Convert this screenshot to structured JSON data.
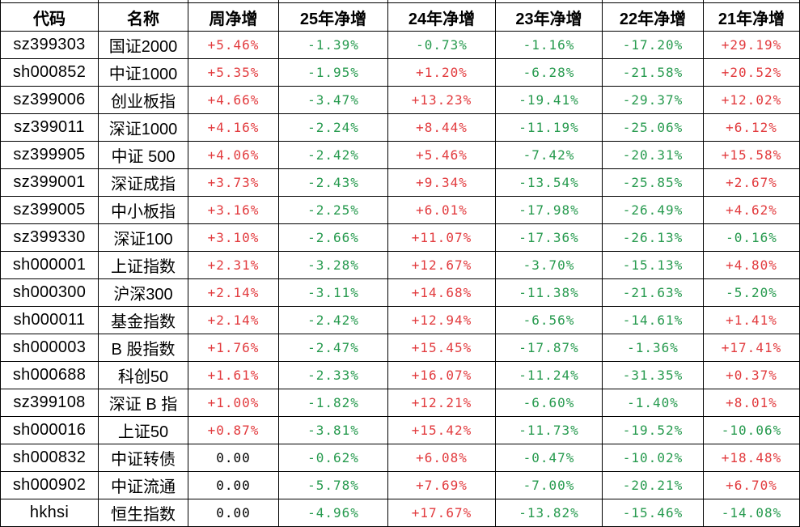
{
  "table": {
    "columns": [
      "代码",
      "名称",
      "周净增",
      "25年净增",
      "24年净增",
      "23年净增",
      "22年净增",
      "21年净增"
    ],
    "colors": {
      "up_red": "#e23b3e",
      "down_green": "#269a4e",
      "neutral_black": "#000000",
      "border_black": "#000000",
      "background_white": "#ffffff"
    },
    "rows": [
      [
        "sz399303",
        "国证2000",
        "+5.46%",
        "-1.39%",
        "-0.73%",
        "-1.16%",
        "-17.20%",
        "+29.19%"
      ],
      [
        "sh000852",
        "中证1000",
        "+5.35%",
        "-1.95%",
        "+1.20%",
        "-6.28%",
        "-21.58%",
        "+20.52%"
      ],
      [
        "sz399006",
        "创业板指",
        "+4.66%",
        "-3.47%",
        "+13.23%",
        "-19.41%",
        "-29.37%",
        "+12.02%"
      ],
      [
        "sz399011",
        "深证1000",
        "+4.16%",
        "-2.24%",
        "+8.44%",
        "-11.19%",
        "-25.06%",
        "+6.12%"
      ],
      [
        "sz399905",
        "中证 500",
        "+4.06%",
        "-2.42%",
        "+5.46%",
        "-7.42%",
        "-20.31%",
        "+15.58%"
      ],
      [
        "sz399001",
        "深证成指",
        "+3.73%",
        "-2.43%",
        "+9.34%",
        "-13.54%",
        "-25.85%",
        "+2.67%"
      ],
      [
        "sz399005",
        "中小板指",
        "+3.16%",
        "-2.25%",
        "+6.01%",
        "-17.98%",
        "-26.49%",
        "+4.62%"
      ],
      [
        "sz399330",
        "深证100",
        "+3.10%",
        "-2.66%",
        "+11.07%",
        "-17.36%",
        "-26.13%",
        "-0.16%"
      ],
      [
        "sh000001",
        "上证指数",
        "+2.31%",
        "-3.28%",
        "+12.67%",
        "-3.70%",
        "-15.13%",
        "+4.80%"
      ],
      [
        "sh000300",
        "沪深300",
        "+2.14%",
        "-3.11%",
        "+14.68%",
        "-11.38%",
        "-21.63%",
        "-5.20%"
      ],
      [
        "sh000011",
        "基金指数",
        "+2.14%",
        "-2.42%",
        "+12.94%",
        "-6.56%",
        "-14.61%",
        "+1.41%"
      ],
      [
        "sh000003",
        "B 股指数",
        "+1.76%",
        "-2.47%",
        "+15.45%",
        "-17.87%",
        "-1.36%",
        "+17.41%"
      ],
      [
        "sh000688",
        "科创50",
        "+1.61%",
        "-2.33%",
        "+16.07%",
        "-11.24%",
        "-31.35%",
        "+0.37%"
      ],
      [
        "sz399108",
        "深证 B 指",
        "+1.00%",
        "-1.82%",
        "+12.21%",
        "-6.60%",
        "-1.40%",
        "+8.01%"
      ],
      [
        "sh000016",
        "上证50",
        "+0.87%",
        "-3.81%",
        "+15.42%",
        "-11.73%",
        "-19.52%",
        "-10.06%"
      ],
      [
        "sh000832",
        "中证转债",
        "0.00",
        "-0.62%",
        "+6.08%",
        "-0.47%",
        "-10.02%",
        "+18.48%"
      ],
      [
        "sh000902",
        "中证流通",
        "0.00",
        "-5.78%",
        "+7.69%",
        "-7.00%",
        "-20.21%",
        "+6.70%"
      ],
      [
        "hkhsi",
        "恒生指数",
        "0.00",
        "-4.96%",
        "+17.67%",
        "-13.82%",
        "-15.46%",
        "-14.08%"
      ]
    ]
  }
}
